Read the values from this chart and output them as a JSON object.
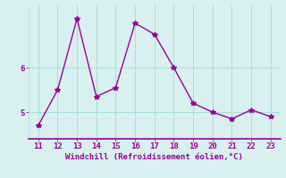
{
  "x": [
    11,
    12,
    13,
    14,
    15,
    16,
    17,
    18,
    19,
    20,
    21,
    22,
    23
  ],
  "y": [
    4.7,
    5.5,
    7.1,
    5.35,
    5.55,
    7.0,
    6.75,
    6.0,
    5.2,
    5.0,
    4.85,
    5.05,
    4.9
  ],
  "line_color": "#990099",
  "marker": "*",
  "marker_size": 4,
  "bg_color": "#d8f0f0",
  "grid_color": "#aadddd",
  "xlabel": "Windchill (Refroidissement éolien,°C)",
  "xlabel_color": "#990099",
  "tick_color": "#990099",
  "ylim": [
    4.4,
    7.4
  ],
  "xlim": [
    10.5,
    23.5
  ],
  "yticks": [
    5,
    6
  ],
  "xticks": [
    11,
    12,
    13,
    14,
    15,
    16,
    17,
    18,
    19,
    20,
    21,
    22,
    23
  ],
  "label_fontsize": 6.5,
  "tick_fontsize": 6.5
}
